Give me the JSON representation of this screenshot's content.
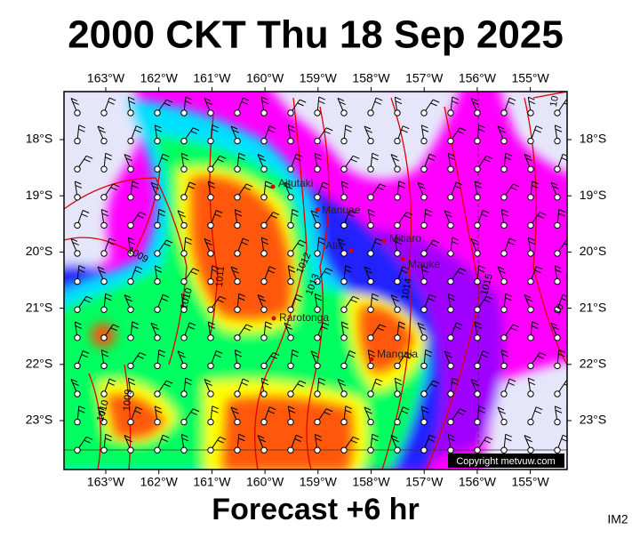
{
  "header": {
    "title": "2000 CKT Thu 18 Sep 2025"
  },
  "map": {
    "longitude_labels": [
      "163°W",
      "162°W",
      "161°W",
      "160°W",
      "159°W",
      "158°W",
      "157°W",
      "156°W",
      "155°W"
    ],
    "latitude_labels": [
      "18°S",
      "19°S",
      "20°S",
      "21°S",
      "22°S",
      "23°S"
    ],
    "places": [
      "Aitutaki",
      "Manuae",
      "Atiu",
      "Mitiaro",
      "Mauke",
      "Rarotonga",
      "Mangaia"
    ],
    "isobar_labels": [
      "1009",
      "1010",
      "1011",
      "1012",
      "1013",
      "1014",
      "1015",
      "10",
      "10",
      "1009",
      "1010"
    ],
    "copyright": "Copyright metvuw.com"
  },
  "footer": {
    "caption": "Forecast +6 hr",
    "image_id": "IM2"
  }
}
